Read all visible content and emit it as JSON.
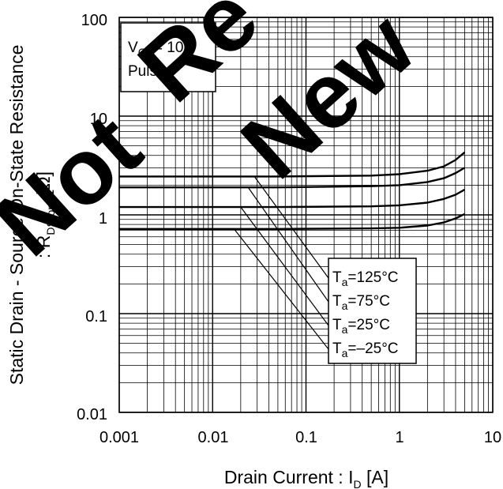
{
  "chart_data": {
    "type": "line",
    "xscale": "log",
    "yscale": "log",
    "xlim": [
      0.001,
      10
    ],
    "ylim": [
      0.01,
      100
    ],
    "grid": true,
    "xticks": [
      "0.001",
      "0.01",
      "0.1",
      "1",
      "10"
    ],
    "yticks": [
      "0.01",
      "0.1",
      "1",
      "10",
      "100"
    ],
    "xlabel": {
      "main": "Drain Current : I",
      "sub": "D",
      "unit": " [A]"
    },
    "ylabel": {
      "line1": "Static Drain - Source On-State Resistance",
      "line2_prefix": ": R",
      "line2_sub": "DS(on)",
      "line2_unit": " [Ω]"
    },
    "conditions": {
      "vgs_symbol": "V",
      "vgs_sub": "GS",
      "vgs_value": "= 10V",
      "mode": "Pulsed"
    },
    "series": [
      {
        "name_prefix": "T",
        "name_sub": "a",
        "name_value": "=125°C",
        "x": [
          0.001,
          0.05,
          0.5,
          1,
          2,
          3,
          4,
          5
        ],
        "y": [
          2.45,
          2.45,
          2.5,
          2.58,
          2.8,
          3.1,
          3.6,
          4.3
        ]
      },
      {
        "name_prefix": "T",
        "name_sub": "a",
        "name_value": "=75°C",
        "x": [
          0.001,
          0.05,
          0.5,
          1,
          2,
          3,
          4,
          5
        ],
        "y": [
          1.9,
          1.9,
          1.95,
          2.0,
          2.15,
          2.35,
          2.65,
          3.0
        ]
      },
      {
        "name_prefix": "T",
        "name_sub": "a",
        "name_value": "=25°C",
        "x": [
          0.001,
          0.05,
          0.5,
          1,
          2,
          3,
          4,
          5
        ],
        "y": [
          1.2,
          1.2,
          1.22,
          1.25,
          1.33,
          1.45,
          1.6,
          1.8
        ]
      },
      {
        "name_prefix": "T",
        "name_sub": "a",
        "name_value": "=–25°C",
        "x": [
          0.001,
          0.05,
          0.5,
          1,
          2,
          3,
          4,
          5
        ],
        "y": [
          0.72,
          0.72,
          0.73,
          0.74,
          0.78,
          0.84,
          0.92,
          1.02
        ]
      }
    ],
    "watermark": {
      "words": [
        "Not",
        "Re",
        "New"
      ],
      "color": "#000000"
    }
  }
}
